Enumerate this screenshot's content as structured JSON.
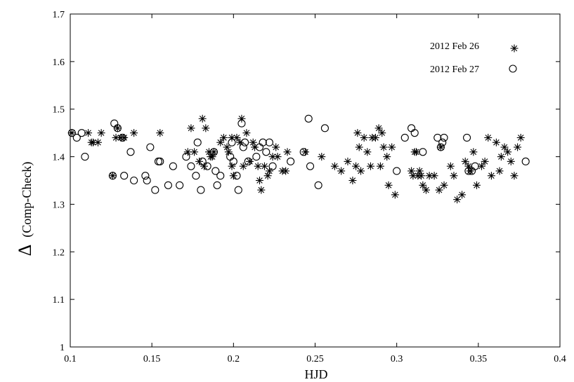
{
  "chart_data": {
    "type": "scatter",
    "title": "",
    "xlabel": "HJD",
    "ylabel_symbol": "Δ",
    "ylabel": "(Comp-Check)",
    "xlim": [
      0.1,
      0.4
    ],
    "ylim": [
      1.0,
      1.7
    ],
    "xticks": [
      0.1,
      0.15,
      0.2,
      0.25,
      0.3,
      0.35,
      0.4
    ],
    "yticks": [
      1.0,
      1.1,
      1.2,
      1.3,
      1.4,
      1.5,
      1.6,
      1.7
    ],
    "xtick_labels": [
      "0.1",
      "0.15",
      "0.2",
      "0.25",
      "0.3",
      "0.35",
      "0.4"
    ],
    "ytick_labels": [
      "1",
      "1.1",
      "1.2",
      "1.3",
      "1.4",
      "1.5",
      "1.6",
      "1.7"
    ],
    "grid": false,
    "legend_position": "top-right",
    "series": [
      {
        "name": "2012 Feb 26",
        "marker": "asterisk",
        "x": [
          0.101,
          0.111,
          0.113,
          0.114,
          0.117,
          0.119,
          0.126,
          0.128,
          0.129,
          0.131,
          0.133,
          0.139,
          0.155,
          0.172,
          0.174,
          0.176,
          0.179,
          0.181,
          0.182,
          0.183,
          0.185,
          0.186,
          0.187,
          0.188,
          0.192,
          0.194,
          0.196,
          0.197,
          0.199,
          0.199,
          0.2,
          0.202,
          0.204,
          0.205,
          0.206,
          0.208,
          0.21,
          0.212,
          0.213,
          0.215,
          0.216,
          0.217,
          0.219,
          0.221,
          0.222,
          0.224,
          0.226,
          0.227,
          0.23,
          0.232,
          0.233,
          0.244,
          0.254,
          0.262,
          0.266,
          0.27,
          0.273,
          0.275,
          0.276,
          0.277,
          0.278,
          0.28,
          0.282,
          0.284,
          0.285,
          0.287,
          0.289,
          0.29,
          0.291,
          0.292,
          0.294,
          0.295,
          0.297,
          0.299,
          0.309,
          0.31,
          0.311,
          0.312,
          0.313,
          0.314,
          0.315,
          0.316,
          0.318,
          0.32,
          0.323,
          0.326,
          0.327,
          0.329,
          0.333,
          0.335,
          0.337,
          0.34,
          0.342,
          0.344,
          0.345,
          0.347,
          0.349,
          0.352,
          0.354,
          0.356,
          0.358,
          0.361,
          0.363,
          0.364,
          0.366,
          0.368,
          0.37,
          0.372,
          0.374,
          0.376
        ],
        "y": [
          1.45,
          1.45,
          1.43,
          1.43,
          1.43,
          1.45,
          1.36,
          1.44,
          1.46,
          1.44,
          1.44,
          1.45,
          1.45,
          1.41,
          1.46,
          1.41,
          1.39,
          1.48,
          1.38,
          1.46,
          1.41,
          1.4,
          1.4,
          1.41,
          1.43,
          1.44,
          1.42,
          1.41,
          1.44,
          1.38,
          1.36,
          1.44,
          1.43,
          1.48,
          1.38,
          1.45,
          1.39,
          1.43,
          1.42,
          1.38,
          1.35,
          1.33,
          1.38,
          1.36,
          1.37,
          1.4,
          1.42,
          1.4,
          1.37,
          1.37,
          1.41,
          1.41,
          1.4,
          1.38,
          1.37,
          1.39,
          1.35,
          1.38,
          1.45,
          1.42,
          1.37,
          1.44,
          1.41,
          1.38,
          1.44,
          1.44,
          1.46,
          1.38,
          1.45,
          1.42,
          1.4,
          1.34,
          1.42,
          1.32,
          1.37,
          1.36,
          1.41,
          1.41,
          1.36,
          1.37,
          1.36,
          1.34,
          1.33,
          1.36,
          1.36,
          1.33,
          1.42,
          1.34,
          1.38,
          1.36,
          1.31,
          1.32,
          1.39,
          1.38,
          1.37,
          1.41,
          1.34,
          1.38,
          1.39,
          1.44,
          1.36,
          1.43,
          1.37,
          1.4,
          1.42,
          1.41,
          1.39,
          1.36,
          1.42,
          1.44
        ]
      },
      {
        "name": "2012 Feb 27",
        "marker": "circle",
        "x": [
          0.101,
          0.104,
          0.107,
          0.109,
          0.126,
          0.127,
          0.129,
          0.132,
          0.133,
          0.137,
          0.139,
          0.146,
          0.147,
          0.149,
          0.152,
          0.154,
          0.155,
          0.16,
          0.163,
          0.167,
          0.171,
          0.174,
          0.177,
          0.178,
          0.18,
          0.181,
          0.184,
          0.188,
          0.189,
          0.19,
          0.192,
          0.198,
          0.199,
          0.2,
          0.202,
          0.203,
          0.205,
          0.206,
          0.207,
          0.209,
          0.214,
          0.216,
          0.218,
          0.22,
          0.222,
          0.224,
          0.235,
          0.243,
          0.246,
          0.247,
          0.252,
          0.256,
          0.3,
          0.305,
          0.309,
          0.311,
          0.316,
          0.325,
          0.327,
          0.328,
          0.329,
          0.343,
          0.344,
          0.346,
          0.348,
          0.379
        ],
        "y": [
          1.45,
          1.44,
          1.45,
          1.4,
          1.36,
          1.47,
          1.46,
          1.44,
          1.36,
          1.41,
          1.35,
          1.36,
          1.35,
          1.42,
          1.33,
          1.39,
          1.39,
          1.34,
          1.38,
          1.34,
          1.4,
          1.38,
          1.36,
          1.43,
          1.33,
          1.39,
          1.38,
          1.41,
          1.37,
          1.34,
          1.36,
          1.4,
          1.43,
          1.39,
          1.36,
          1.33,
          1.47,
          1.42,
          1.43,
          1.39,
          1.4,
          1.42,
          1.43,
          1.41,
          1.43,
          1.38,
          1.39,
          1.41,
          1.48,
          1.38,
          1.34,
          1.46,
          1.37,
          1.44,
          1.46,
          1.45,
          1.41,
          1.44,
          1.42,
          1.43,
          1.44,
          1.44,
          1.37,
          1.37,
          1.38,
          1.39
        ]
      }
    ]
  }
}
